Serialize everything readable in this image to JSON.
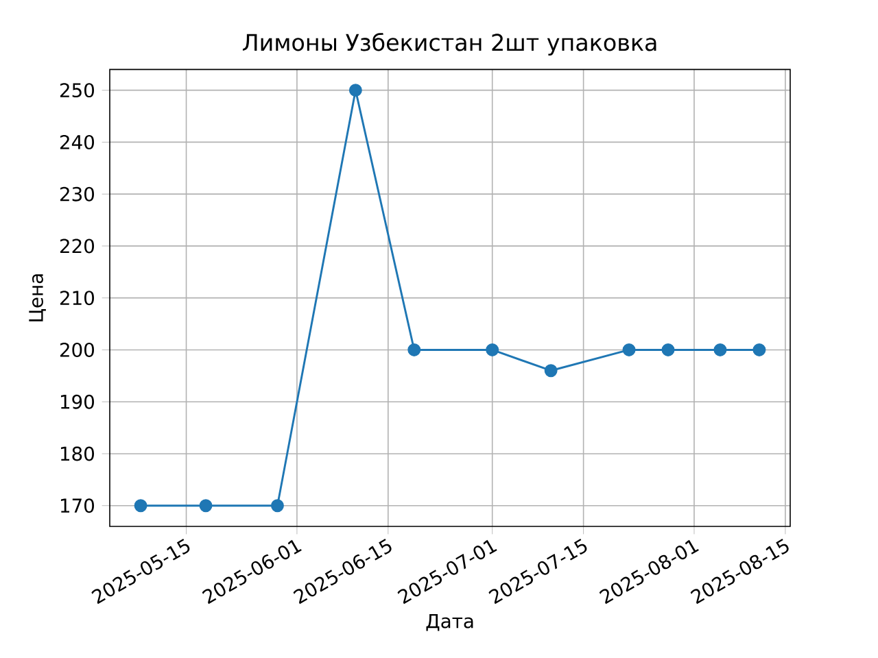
{
  "chart_data": {
    "type": "line",
    "title": "Лимоны Узбекистан 2шт упаковка",
    "xlabel": "Дата",
    "ylabel": "Цена",
    "x": [
      "2025-05-08",
      "2025-05-18",
      "2025-05-29",
      "2025-06-10",
      "2025-06-19",
      "2025-07-01",
      "2025-07-10",
      "2025-07-22",
      "2025-07-28",
      "2025-08-05",
      "2025-08-11"
    ],
    "values": [
      170,
      170,
      170,
      250,
      200,
      200,
      196,
      200,
      200,
      200,
      200
    ],
    "color": "#1f77b4",
    "marker": "circle",
    "line_style": "solid",
    "grid": true,
    "xlim": [
      "2025-05-03T06:00",
      "2025-08-15T18:00"
    ],
    "ylim": [
      166,
      254
    ],
    "xticks": [
      "2025-05-15",
      "2025-06-01",
      "2025-06-15",
      "2025-07-01",
      "2025-07-15",
      "2025-08-01",
      "2025-08-15"
    ],
    "yticks": [
      170,
      180,
      190,
      200,
      210,
      220,
      230,
      240,
      250
    ]
  }
}
